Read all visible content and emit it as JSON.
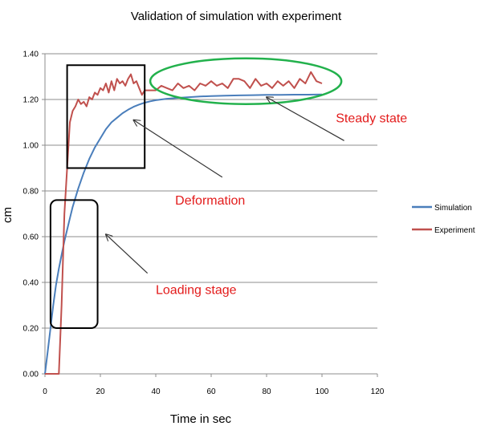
{
  "chart_data": {
    "type": "line",
    "title": "Validation of simulation with experiment",
    "xlabel": "Time  in sec",
    "ylabel": "cm",
    "xlim": [
      0,
      120
    ],
    "ylim": [
      0,
      1.4
    ],
    "x_ticks": [
      0,
      20,
      40,
      60,
      80,
      100,
      120
    ],
    "y_ticks": [
      0.0,
      0.2,
      0.4,
      0.6,
      0.8,
      1.0,
      1.2,
      1.4
    ],
    "y_tick_labels": [
      "0.00",
      "0.20",
      "0.40",
      "0.60",
      "0.80",
      "1.00",
      "1.20",
      "1.40"
    ],
    "grid": "horizontal",
    "legend_position": "right",
    "series": [
      {
        "name": "Simulation",
        "color": "#4a7ebb",
        "x": [
          0,
          1,
          2,
          3,
          4,
          5,
          6,
          7,
          8,
          9,
          10,
          12,
          14,
          16,
          18,
          20,
          22,
          24,
          26,
          28,
          30,
          32,
          34,
          36,
          38,
          40,
          44,
          48,
          52,
          56,
          60,
          65,
          70,
          75,
          80,
          85,
          90,
          95,
          100
        ],
        "y": [
          0.0,
          0.1,
          0.2,
          0.3,
          0.39,
          0.46,
          0.52,
          0.58,
          0.63,
          0.68,
          0.73,
          0.81,
          0.88,
          0.94,
          0.99,
          1.03,
          1.07,
          1.1,
          1.12,
          1.14,
          1.155,
          1.168,
          1.178,
          1.186,
          1.192,
          1.197,
          1.203,
          1.207,
          1.21,
          1.213,
          1.215,
          1.217,
          1.218,
          1.219,
          1.22,
          1.22,
          1.221,
          1.221,
          1.222
        ]
      },
      {
        "name": "Experiment",
        "color": "#c0504d",
        "x": [
          0,
          5,
          6,
          7,
          8,
          9,
          10,
          11,
          12,
          13,
          14,
          15,
          16,
          17,
          18,
          19,
          20,
          21,
          22,
          23,
          24,
          25,
          26,
          27,
          28,
          29,
          30,
          31,
          32,
          33,
          34,
          35,
          36,
          38,
          40,
          42,
          44,
          46,
          48,
          50,
          52,
          54,
          56,
          58,
          60,
          62,
          64,
          66,
          68,
          70,
          72,
          74,
          76,
          78,
          80,
          82,
          84,
          86,
          88,
          90,
          92,
          94,
          96,
          98,
          100
        ],
        "y": [
          0.0,
          0.0,
          0.3,
          0.7,
          0.9,
          1.1,
          1.15,
          1.17,
          1.2,
          1.18,
          1.19,
          1.17,
          1.21,
          1.2,
          1.23,
          1.22,
          1.25,
          1.24,
          1.27,
          1.23,
          1.28,
          1.24,
          1.29,
          1.27,
          1.28,
          1.26,
          1.29,
          1.31,
          1.27,
          1.28,
          1.25,
          1.22,
          1.24,
          1.24,
          1.24,
          1.26,
          1.25,
          1.24,
          1.27,
          1.25,
          1.26,
          1.24,
          1.27,
          1.26,
          1.28,
          1.26,
          1.27,
          1.25,
          1.29,
          1.29,
          1.28,
          1.25,
          1.29,
          1.26,
          1.27,
          1.25,
          1.28,
          1.26,
          1.28,
          1.25,
          1.29,
          1.27,
          1.32,
          1.28,
          1.27
        ]
      }
    ],
    "annotations": [
      {
        "text": "Steady state",
        "color": "#e31b1b",
        "shape": "ellipse",
        "shape_color": "#22b14c",
        "region": {
          "x": [
            38,
            107
          ],
          "y": [
            1.18,
            1.38
          ]
        },
        "label_at": [
          105,
          1.1
        ],
        "arrow_from": [
          108,
          1.02
        ],
        "arrow_to": [
          80,
          1.21
        ]
      },
      {
        "text": "Deformation",
        "color": "#e31b1b",
        "shape": "rect",
        "shape_color": "#000000",
        "region": {
          "x": [
            8,
            36
          ],
          "y": [
            0.9,
            1.35
          ]
        },
        "label_at": [
          47,
          0.74
        ],
        "arrow_from": [
          64,
          0.86
        ],
        "arrow_to": [
          32,
          1.11
        ]
      },
      {
        "text": "Loading stage",
        "color": "#e31b1b",
        "shape": "rounded-rect",
        "shape_color": "#000000",
        "region": {
          "x": [
            2,
            19
          ],
          "y": [
            0.2,
            0.76
          ]
        },
        "label_at": [
          40,
          0.35
        ],
        "arrow_from": [
          37,
          0.44
        ],
        "arrow_to": [
          22,
          0.61
        ]
      }
    ]
  }
}
